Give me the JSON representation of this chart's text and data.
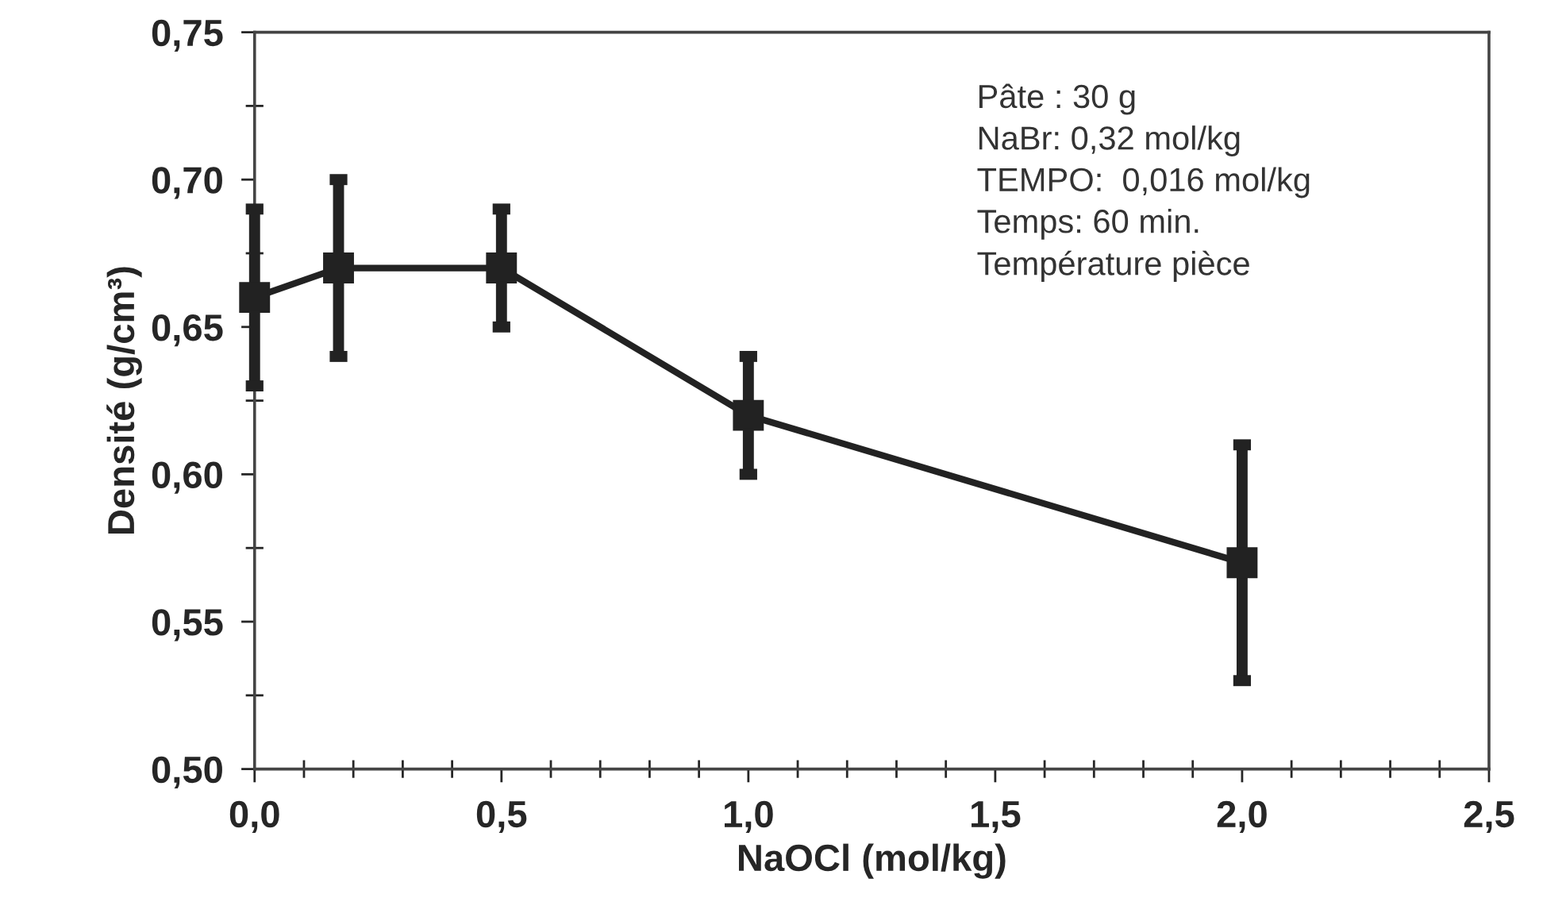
{
  "chart_data": {
    "type": "line",
    "xlabel": "NaOCl (mol/kg)",
    "ylabel": "Densité (g/cm³)",
    "x": [
      0.0,
      0.17,
      0.5,
      1.0,
      2.0
    ],
    "series": [
      {
        "color": "#222222",
        "values": [
          0.66,
          0.67,
          0.67,
          0.62,
          0.57
        ],
        "errors": [
          0.03,
          0.03,
          0.02,
          0.02,
          0.04
        ]
      }
    ],
    "marker": "square",
    "line_style": "solid",
    "grid": false,
    "xlim": [
      0.0,
      2.5
    ],
    "ylim": [
      0.5,
      0.75
    ],
    "xticks": [
      {
        "value": 0.0,
        "label": "0,0"
      },
      {
        "value": 0.5,
        "label": "0,5"
      },
      {
        "value": 1.0,
        "label": "1,0"
      },
      {
        "value": 1.5,
        "label": "1,5"
      },
      {
        "value": 2.0,
        "label": "2,0"
      },
      {
        "value": 2.5,
        "label": "2,5"
      }
    ],
    "yticks": [
      {
        "value": 0.5,
        "label": "0,50"
      },
      {
        "value": 0.55,
        "label": "0,55"
      },
      {
        "value": 0.6,
        "label": "0,60"
      },
      {
        "value": 0.65,
        "label": "0,65"
      },
      {
        "value": 0.7,
        "label": "0,70"
      },
      {
        "value": 0.75,
        "label": "0,75"
      }
    ],
    "annotations": [
      "Pâte : 30 g\nNaBr: 0,32 mol/kg\nTEMPO:  0,016 mol/kg\nTemps: 60 min.\nTempérature pièce"
    ]
  }
}
